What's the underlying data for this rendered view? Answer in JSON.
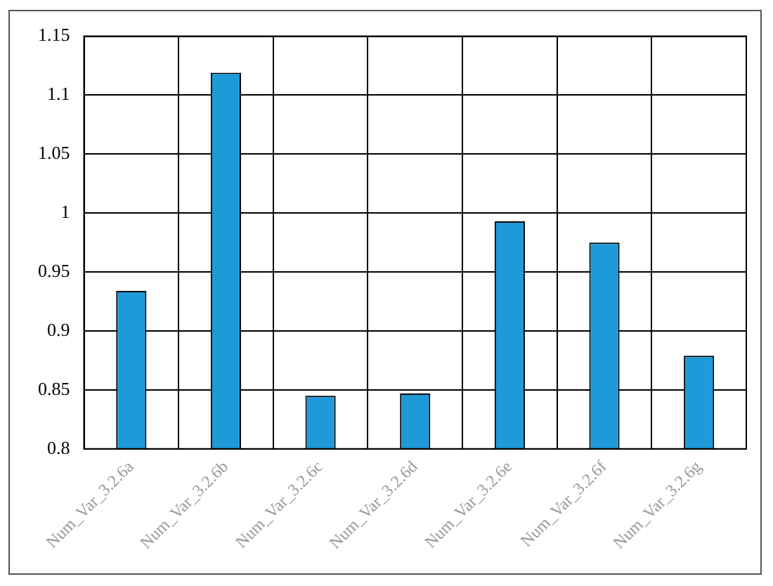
{
  "chart_data": {
    "type": "bar",
    "categories": [
      "Num_Var_3.2.6a",
      "Num_Var_3.2.6b",
      "Num_Var_3.2.6c",
      "Num_Var_3.2.6d",
      "Num_Var_3.2.6e",
      "Num_Var_3.2.6f",
      "Num_Var_3.2.6g"
    ],
    "values": [
      0.934,
      1.119,
      0.845,
      0.847,
      0.993,
      0.975,
      0.879
    ],
    "color": "#1e9ad8",
    "ylim": [
      0.8,
      1.15
    ],
    "yticks": [
      0.8,
      0.85,
      0.9,
      0.95,
      1,
      1.05,
      1.1,
      1.15
    ],
    "grid": true,
    "legend": false
  }
}
